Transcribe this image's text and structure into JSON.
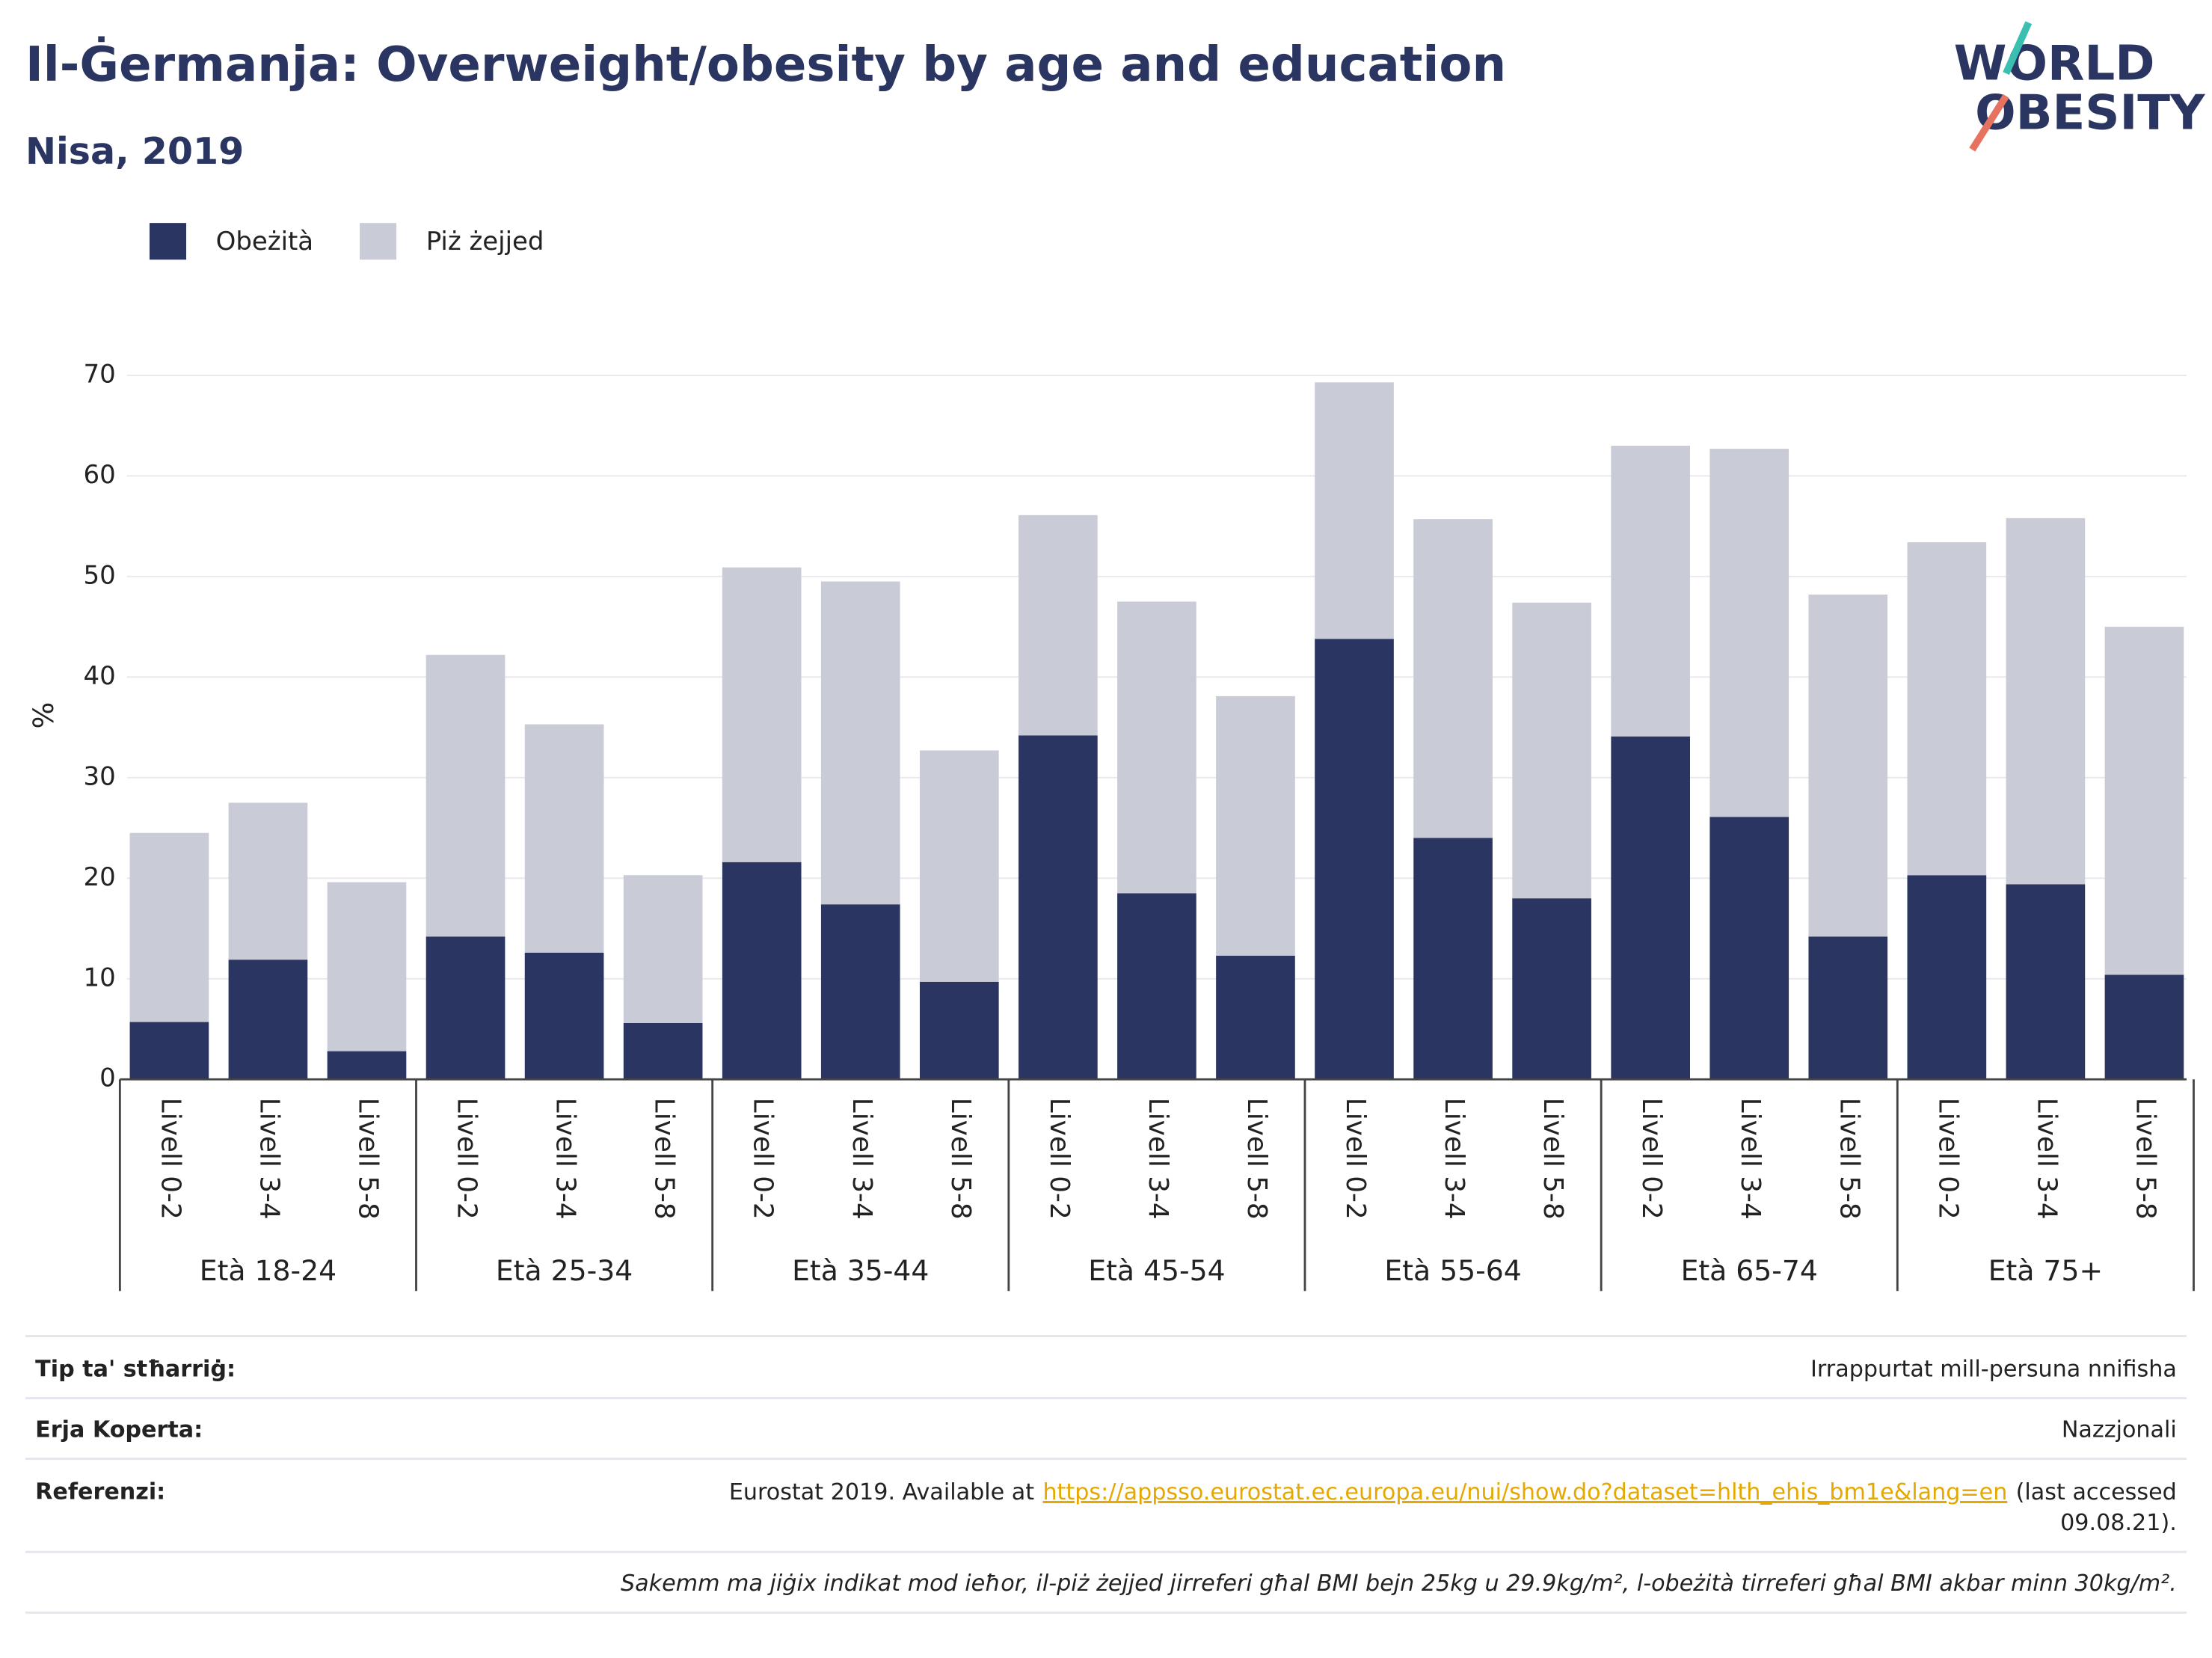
{
  "chart_data": {
    "type": "stacked_bar",
    "title": "Il-Ġermanja: Overweight/obesity by age and education",
    "subtitle": "Nisa, 2019",
    "logo": [
      "WORLD",
      "OBESITY"
    ],
    "ylabel": "%",
    "categories": [
      "Livell 0-2",
      "Livell 3-4",
      "Livell 5-8",
      "Livell 0-2",
      "Livell 3-4",
      "Livell 5-8",
      "Livell 0-2",
      "Livell 3-4",
      "Livell 5-8",
      "Livell 0-2",
      "Livell 3-4",
      "Livell 5-8",
      "Livell 0-2",
      "Livell 3-4",
      "Livell 5-8",
      "Livell 0-2",
      "Livell 3-4",
      "Livell 5-8",
      "Livell 0-2",
      "Livell 3-4",
      "Livell 5-8"
    ],
    "groups": [
      "Età 18-24",
      "Età 25-34",
      "Età 35-44",
      "Età 45-54",
      "Età 55-64",
      "Età 65-74",
      "Età 75+"
    ],
    "series": [
      {
        "name": "Obeżità",
        "color": "#2a3561",
        "values": [
          5.7,
          11.9,
          2.8,
          14.2,
          12.6,
          5.6,
          21.6,
          17.4,
          9.7,
          34.2,
          18.5,
          12.3,
          43.8,
          24.0,
          18.0,
          34.1,
          26.1,
          14.2,
          20.3,
          19.4,
          10.4
        ]
      },
      {
        "name": "Piż żejjed",
        "color": "#c9cbd6",
        "values": [
          18.8,
          15.6,
          16.8,
          28.0,
          22.7,
          14.7,
          29.3,
          32.1,
          23.0,
          21.9,
          29.0,
          25.8,
          25.5,
          31.7,
          29.4,
          28.9,
          36.6,
          34.0,
          33.1,
          36.4,
          34.6
        ]
      }
    ],
    "ylim": [
      0,
      70
    ],
    "yticks": [
      0,
      10,
      20,
      30,
      40,
      50,
      60,
      70
    ],
    "grid": true,
    "legend": "top-left"
  },
  "footer": {
    "rows": [
      {
        "label": "Tip ta' stħarriġ:",
        "value": "Irrappurtat mill-persuna nnifisha"
      },
      {
        "label": "Erja Koperta:",
        "value": "Nazzjonali"
      },
      {
        "label": "Referenzi:",
        "text_before": "Eurostat 2019. Available at",
        "link": "https://appsso.eurostat.ec.europa.eu/nui/show.do?dataset=hlth_ehis_bm1e&lang=en",
        "text_after": [
          "(last accessed",
          "09.08.21)."
        ]
      }
    ],
    "note": "Sakemm ma jiġix indikat mod ieħor, il-piż żejjed jirreferi għal BMI bejn 25kg u 29.9kg/m², l-obeżità tirreferi għal BMI akbar minn 30kg/m²."
  }
}
